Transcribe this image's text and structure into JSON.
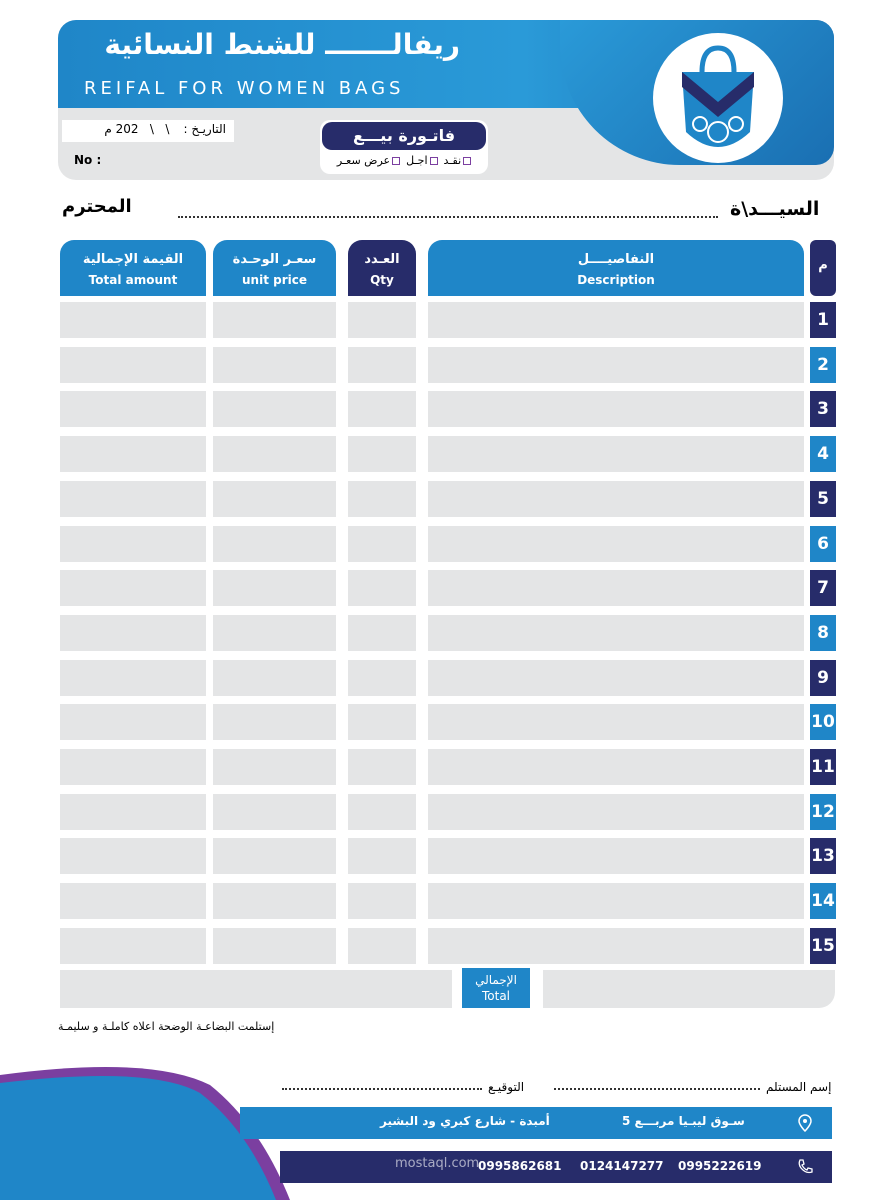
{
  "header": {
    "title_ar": "ريفالـــــــ للشنط النسائية",
    "title_en": "REIFAL FOR WOMEN BAGS",
    "date_label": "التاريـخ :",
    "date_value": "\\   \\   202 م",
    "no_label": "No :",
    "invoice_title": "فاتـورة بيـــع",
    "payment_options": [
      "نقـد",
      "اجـل",
      "عرض سعـر"
    ]
  },
  "customer": {
    "label": "السيـــد\\ة",
    "suffix": "المحترم"
  },
  "table": {
    "columns": [
      {
        "ar": "م"
      },
      {
        "ar": "النفاصيــــل",
        "en": "Description"
      },
      {
        "ar": "العـدد",
        "en": "Qty"
      },
      {
        "ar": "سعـر الوحـدة",
        "en": "unit price"
      },
      {
        "ar": "القيمة الإجمالية",
        "en": "Total amount"
      }
    ],
    "rows": [
      1,
      2,
      3,
      4,
      5,
      6,
      7,
      8,
      9,
      10,
      11,
      12,
      13,
      14,
      15
    ],
    "total": {
      "ar": "الإجمالي",
      "en": "Total"
    }
  },
  "footer": {
    "note": "إستلمت البضاعـة الوضحة اعلاه كاملـة و سليمـة",
    "receiver_label": "إسم المستلم",
    "signature_label": "التوقيـع",
    "address": [
      "سـوق ليبـيا مربـــع 5",
      "أمبدة - شارع كبري ود البشير"
    ],
    "phones": [
      "0995222619",
      "0124147277",
      "0995862681"
    ],
    "watermark": "mostaql.com"
  }
}
